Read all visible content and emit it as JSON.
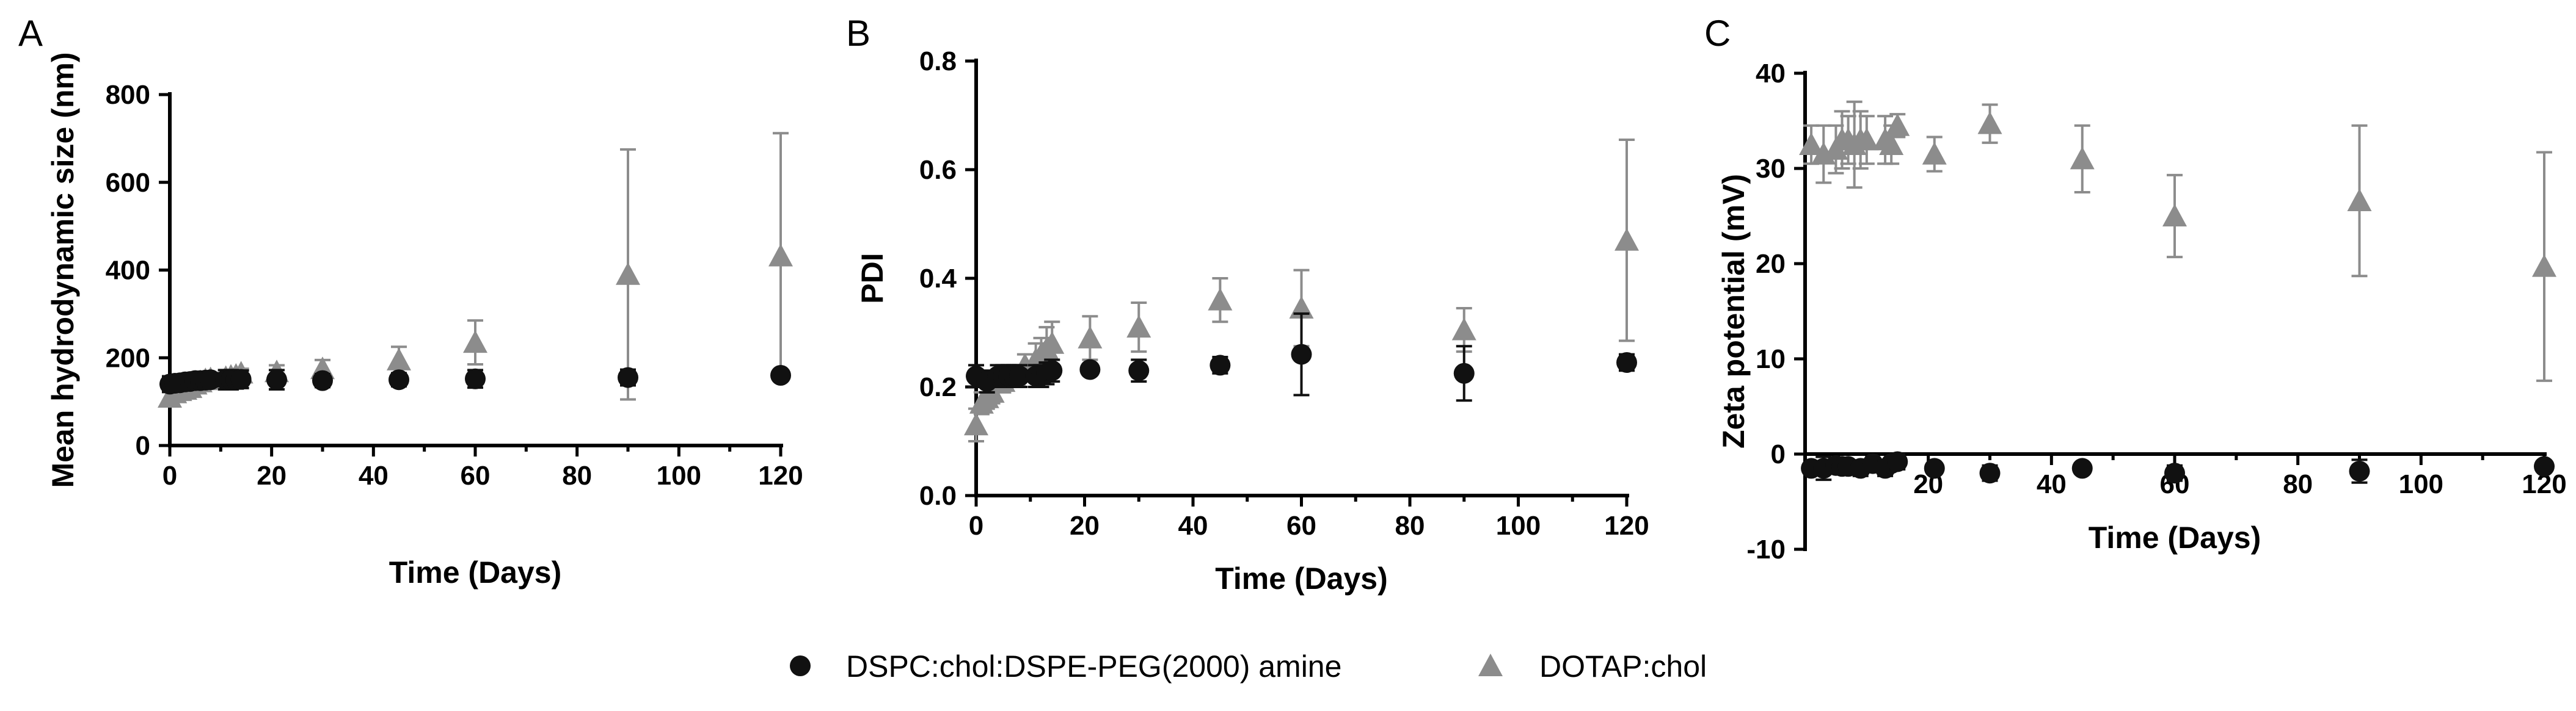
{
  "colors": {
    "dspc": "#111111",
    "dotap": "#8c8c8c",
    "axis": "#000000"
  },
  "legend": {
    "items": [
      {
        "label": "DSPC:chol:DSPE-PEG(2000) amine",
        "marker": "circle",
        "color": "#111111"
      },
      {
        "label": "DOTAP:chol",
        "marker": "triangle",
        "color": "#8c8c8c"
      }
    ],
    "placement": "bottom-center"
  },
  "chart_data": [
    {
      "panel_label": "A",
      "type": "scatter",
      "xlabel": "Time (Days)",
      "ylabel": "Mean hydrodynamic size (nm)",
      "xlim": [
        0,
        120
      ],
      "ylim": [
        0,
        800
      ],
      "xticks": [
        0,
        20,
        40,
        60,
        80,
        100,
        120
      ],
      "yticks": [
        0,
        200,
        400,
        600,
        800
      ],
      "x_axis_at": 0,
      "series": [
        {
          "name": "DSPC:chol:DSPE-PEG(2000) amine",
          "marker": "circle",
          "x": [
            0,
            1,
            2,
            3,
            4,
            5,
            6,
            7,
            8,
            11,
            12,
            13,
            14,
            21,
            30,
            45,
            60,
            90,
            120
          ],
          "y": [
            140,
            142,
            143,
            145,
            146,
            148,
            148,
            149,
            150,
            150,
            150,
            150,
            151,
            150,
            148,
            150,
            152,
            155,
            160
          ],
          "err": [
            18,
            10,
            10,
            12,
            12,
            14,
            14,
            15,
            15,
            22,
            22,
            20,
            20,
            22,
            15,
            15,
            20,
            18,
            6
          ]
        },
        {
          "name": "DOTAP:chol",
          "marker": "triangle",
          "x": [
            0,
            1,
            2,
            3,
            4,
            5,
            6,
            7,
            8,
            11,
            12,
            13,
            14,
            21,
            30,
            45,
            60,
            90,
            120
          ],
          "y": [
            110,
            120,
            125,
            128,
            132,
            140,
            145,
            150,
            152,
            155,
            158,
            160,
            165,
            168,
            175,
            195,
            235,
            390,
            432
          ],
          "err": [
            15,
            15,
            10,
            10,
            10,
            10,
            10,
            10,
            10,
            10,
            10,
            10,
            10,
            15,
            20,
            30,
            50,
            285,
            280
          ]
        }
      ]
    },
    {
      "panel_label": "B",
      "type": "scatter",
      "xlabel": "Time (Days)",
      "ylabel": "PDI",
      "xlim": [
        0,
        120
      ],
      "ylim": [
        0.0,
        0.8
      ],
      "xticks": [
        0,
        20,
        40,
        60,
        80,
        100,
        120
      ],
      "yticks": [
        "0.0",
        "0.2",
        "0.4",
        "0.6",
        "0.8"
      ],
      "x_axis_at": 0,
      "series": [
        {
          "name": "DSPC:chol:DSPE-PEG(2000) amine",
          "marker": "circle",
          "x": [
            0,
            2,
            4,
            5,
            6,
            7,
            8,
            11,
            12,
            13,
            14,
            21,
            30,
            45,
            60,
            90,
            120
          ],
          "y": [
            0.22,
            0.21,
            0.22,
            0.22,
            0.22,
            0.22,
            0.22,
            0.22,
            0.22,
            0.225,
            0.23,
            0.232,
            0.23,
            0.24,
            0.26,
            0.225,
            0.245
          ],
          "err": [
            0.02,
            0.02,
            0.02,
            0.02,
            0.02,
            0.02,
            0.02,
            0.02,
            0.02,
            0.02,
            0.02,
            0.01,
            0.02,
            0.015,
            0.075,
            0.05,
            0.015
          ]
        },
        {
          "name": "DOTAP:chol",
          "marker": "triangle",
          "x": [
            0,
            1,
            2,
            3,
            5,
            7,
            9,
            11,
            12,
            13,
            14,
            21,
            30,
            45,
            60,
            90,
            120
          ],
          "y": [
            0.13,
            0.17,
            0.18,
            0.19,
            0.21,
            0.22,
            0.24,
            0.25,
            0.26,
            0.27,
            0.28,
            0.29,
            0.31,
            0.36,
            0.345,
            0.305,
            0.47
          ],
          "err": [
            0.03,
            0.02,
            0.02,
            0.02,
            0.02,
            0.02,
            0.02,
            0.03,
            0.03,
            0.04,
            0.04,
            0.04,
            0.045,
            0.04,
            0.07,
            0.04,
            0.185
          ]
        }
      ]
    },
    {
      "panel_label": "C",
      "type": "scatter",
      "xlabel": "Time (Days)",
      "ylabel": "Zeta potential (mV)",
      "xlim": [
        0,
        120
      ],
      "ylim": [
        -10,
        40
      ],
      "xticks": [
        20,
        40,
        60,
        80,
        100,
        120
      ],
      "yticks": [
        -10,
        0,
        10,
        20,
        30,
        40
      ],
      "x_axis_at": 0,
      "series": [
        {
          "name": "DSPC:chol:DSPE-PEG(2000) amine",
          "marker": "circle",
          "x": [
            1,
            3,
            5,
            6,
            7,
            9,
            11,
            13,
            14,
            15,
            21,
            30,
            45,
            60,
            90,
            120
          ],
          "y": [
            -1.5,
            -1.5,
            -1.2,
            -1.3,
            -1.3,
            -1.5,
            -1.0,
            -1.5,
            -1.0,
            -0.8,
            -1.5,
            -2.0,
            -1.5,
            -2.0,
            -1.8,
            -1.3
          ],
          "err": [
            0.5,
            1.2,
            0.8,
            0.5,
            0.5,
            0.8,
            0.5,
            0.8,
            0.5,
            0.8,
            0.3,
            0.8,
            0.3,
            0.8,
            1.2,
            0.3
          ]
        },
        {
          "name": "DOTAP:chol",
          "marker": "triangle",
          "x": [
            1,
            3,
            5,
            6,
            7,
            8,
            9,
            10,
            13,
            14,
            15,
            21,
            30,
            45,
            60,
            90,
            120
          ],
          "y": [
            32.5,
            31.5,
            32,
            33,
            33,
            32.5,
            33,
            33,
            33,
            32.5,
            34.5,
            31.5,
            34.7,
            31,
            25,
            26.6,
            19.7
          ],
          "err": [
            2,
            3,
            2.5,
            3,
            2.5,
            4.5,
            3,
            2.5,
            2.5,
            2,
            1.2,
            1.8,
            2,
            3.5,
            4.3,
            7.9,
            12
          ]
        }
      ]
    }
  ]
}
